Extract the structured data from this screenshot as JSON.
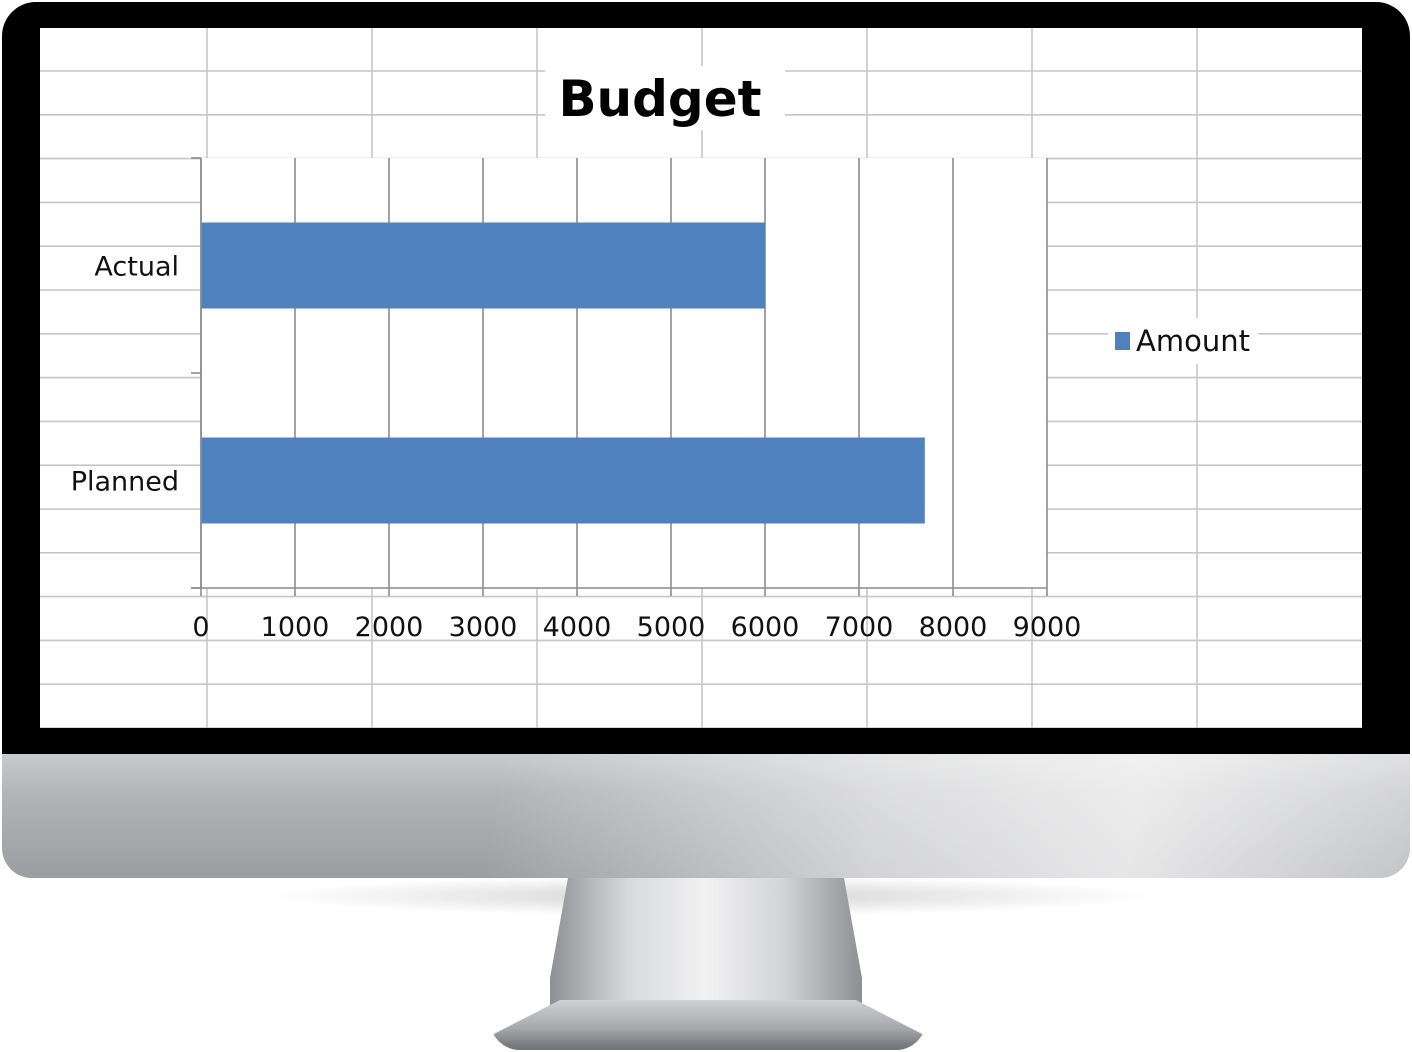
{
  "chart_data": {
    "type": "bar",
    "orientation": "horizontal",
    "title": "Budget",
    "categories": [
      "Actual",
      "Planned"
    ],
    "series": [
      {
        "name": "Amount",
        "values": [
          6000,
          7700
        ],
        "color": "#4f81bd"
      }
    ],
    "xlim": [
      0,
      9000
    ],
    "xticks": [
      "0",
      "1000",
      "2000",
      "3000",
      "4000",
      "5000",
      "6000",
      "7000",
      "8000",
      "9000"
    ],
    "xlabel": "",
    "ylabel": "",
    "grid": true,
    "legend_position": "right"
  },
  "colors": {
    "bar": "#4f81bd",
    "gridline": "#8c8c8c",
    "spreadsheet_grid": "#c6c6c6"
  }
}
